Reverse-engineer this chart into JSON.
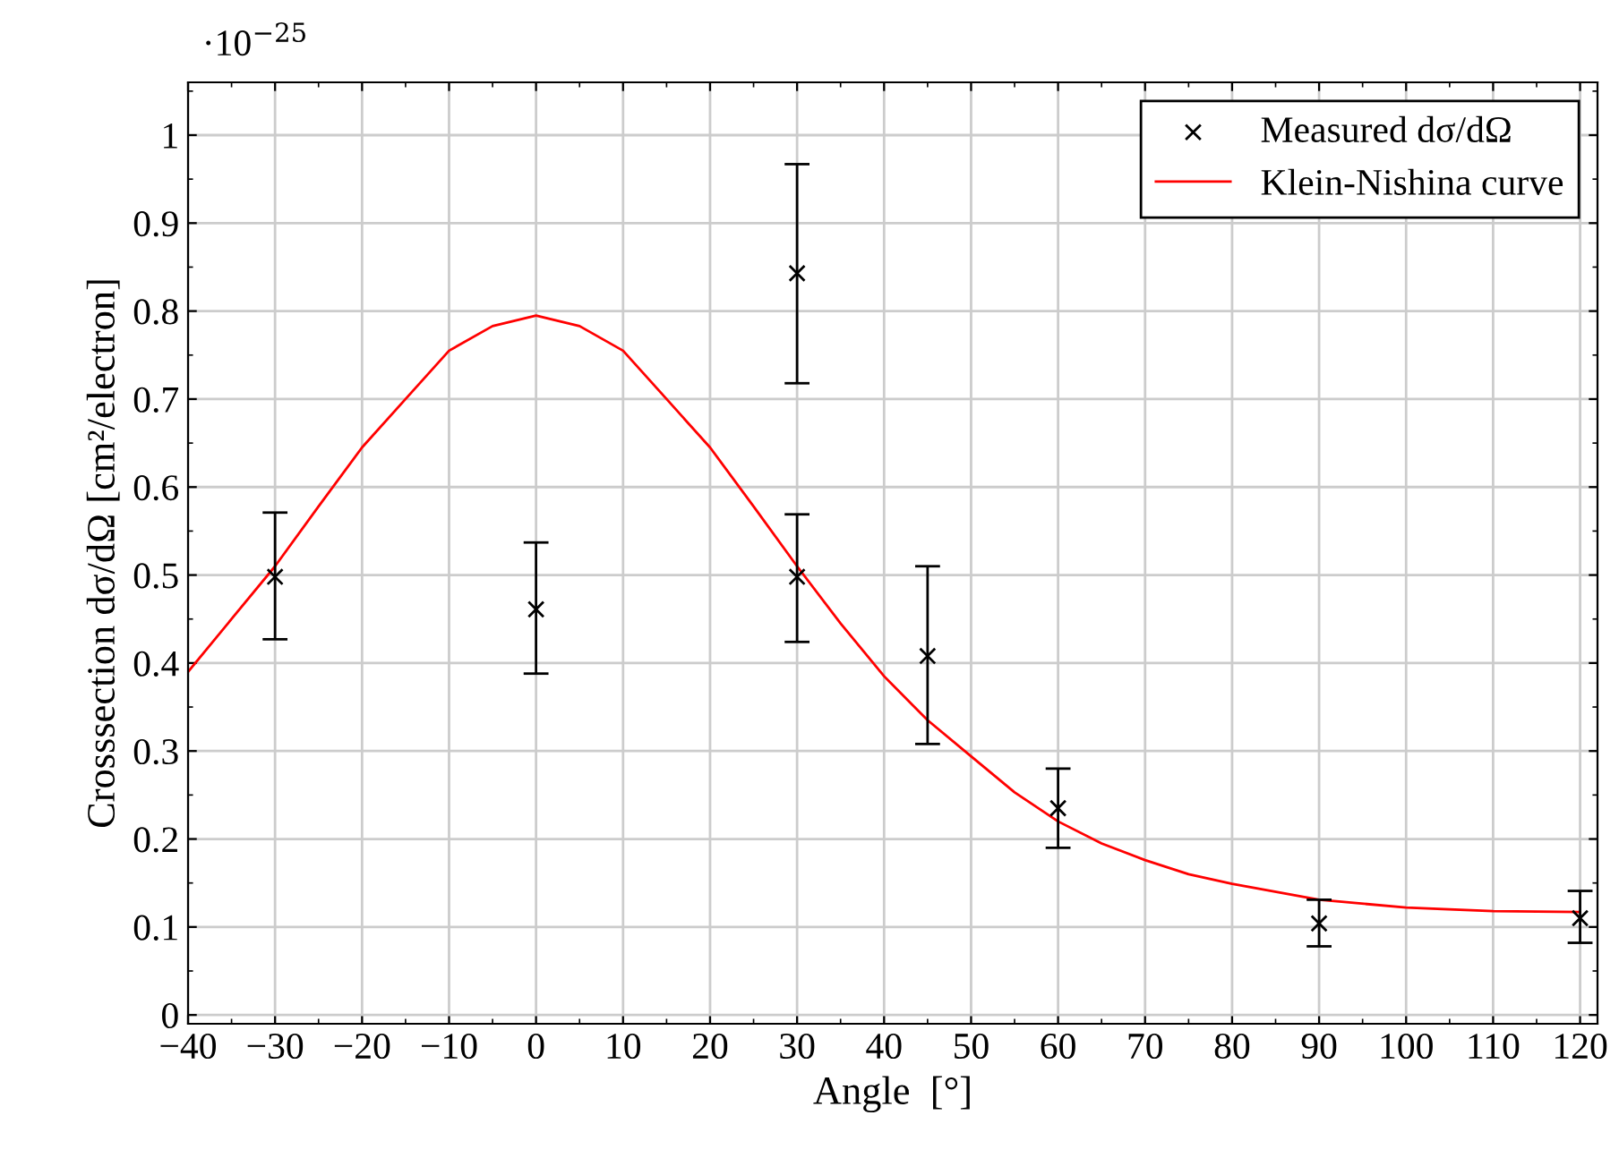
{
  "chart_data": {
    "type": "scatter",
    "xlabel": "Angle  [°]",
    "ylabel": "Crosssection dσ/dΩ [cm²/electron]",
    "annotations": [
      "·10$^{−25}$"
    ],
    "xlim": [
      -40,
      122
    ],
    "ylim": [
      -0.01,
      1.06
    ],
    "xticks": [
      {
        "value": -40,
        "label": "−40"
      },
      {
        "value": -30,
        "label": "−30"
      },
      {
        "value": -20,
        "label": "−20"
      },
      {
        "value": -10,
        "label": "−10"
      },
      0,
      10,
      20,
      30,
      40,
      50,
      60,
      70,
      80,
      90,
      100,
      110,
      120
    ],
    "yticks": [
      0,
      0.1,
      0.2,
      0.3,
      0.4,
      0.5,
      0.6,
      0.7,
      0.8,
      0.9,
      1
    ],
    "grid": true,
    "legend": "top right",
    "series": [
      {
        "name": "Measured dσ/dΩ",
        "color": "#000000",
        "marker": "cross",
        "x": [
          -30,
          0,
          30,
          30,
          45,
          60,
          90,
          120
        ],
        "values": [
          0.498,
          0.461,
          0.843,
          0.498,
          0.408,
          0.235,
          0.104,
          0.11
        ],
        "errors": [
          [
            0.427,
            0.571
          ],
          [
            0.388,
            0.537
          ],
          [
            0.718,
            0.967
          ],
          [
            0.424,
            0.569
          ],
          [
            0.308,
            0.51
          ],
          [
            0.19,
            0.28
          ],
          [
            0.078,
            0.131
          ],
          [
            0.082,
            0.141
          ]
        ]
      },
      {
        "name": "Klein-Nishina curve",
        "type": "line",
        "color": "#ff0000",
        "marker": "none",
        "line_style": "solid",
        "x": [
          -40,
          -35,
          -30,
          -25,
          -20,
          -15,
          -10,
          -5,
          0,
          5,
          10,
          15,
          20,
          25,
          30,
          35,
          40,
          45,
          50,
          55,
          60,
          65,
          70,
          75,
          80,
          90,
          100,
          110,
          120
        ],
        "values": [
          0.39,
          0.45,
          0.51,
          0.578,
          0.645,
          0.7,
          0.755,
          0.783,
          0.795,
          0.783,
          0.755,
          0.7,
          0.645,
          0.578,
          0.51,
          0.445,
          0.385,
          0.335,
          0.294,
          0.253,
          0.22,
          0.195,
          0.176,
          0.16,
          0.149,
          0.131,
          0.122,
          0.118,
          0.117
        ]
      }
    ]
  }
}
